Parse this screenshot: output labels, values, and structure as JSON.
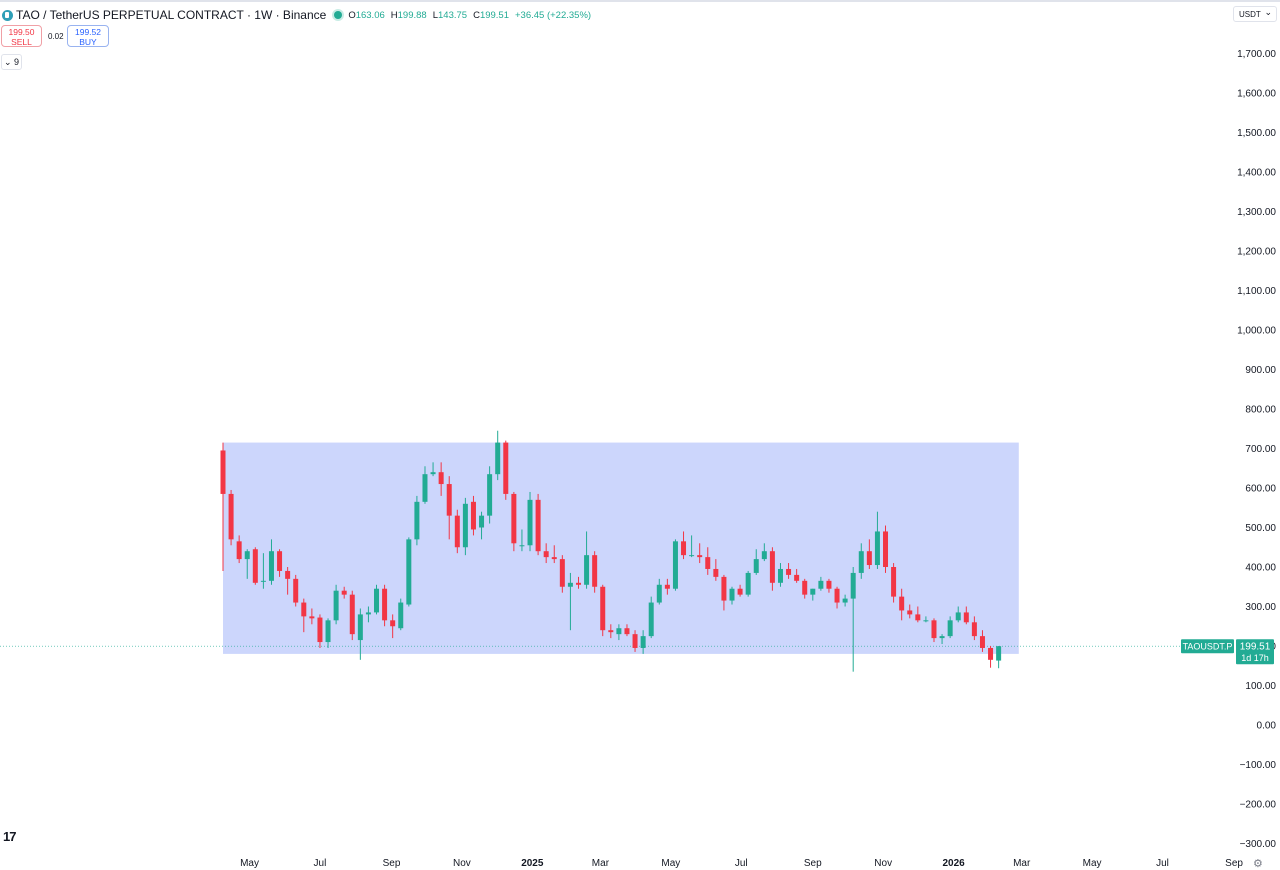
{
  "header": {
    "symbol_title": "TAO / TetherUS PERPETUAL CONTRACT · 1W · Binance",
    "o_label": "O",
    "o_value": "163.06",
    "h_label": "H",
    "h_value": "199.88",
    "l_label": "L",
    "l_value": "143.75",
    "c_label": "C",
    "c_value": "199.51",
    "change": "+36.45 (+22.35%)"
  },
  "trade": {
    "sell_price": "199.50",
    "sell_label": "SELL",
    "spread": "0.02",
    "buy_price": "199.52",
    "buy_label": "BUY"
  },
  "indicators_toggle": "⌄ 9",
  "currency_selector": "USDT",
  "footer": {
    "logo": "17",
    "settings_icon": "gear-icon"
  },
  "colors": {
    "up": "#22ab94",
    "down": "#f23645",
    "range_box": "#c9d4fc",
    "axis_text": "#131722"
  },
  "chart_data": {
    "type": "candlestick",
    "title": "",
    "y_axis_side": "right",
    "y_ticks": [
      "1,700.00",
      "1,600.00",
      "1,500.00",
      "1,400.00",
      "1,300.00",
      "1,200.00",
      "1,100.00",
      "1,000.00",
      "900.00",
      "800.00",
      "700.00",
      "600.00",
      "500.00",
      "400.00",
      "300.00",
      "200.00",
      "100.00",
      "0.00",
      "−100.00",
      "−200.00",
      "−300.00"
    ],
    "ylim": [
      -300,
      1700
    ],
    "x_ticks": [
      {
        "label": "May",
        "date": "2024-05-01",
        "bold": false
      },
      {
        "label": "Jul",
        "date": "2024-07-01",
        "bold": false
      },
      {
        "label": "Sep",
        "date": "2024-09-01",
        "bold": false
      },
      {
        "label": "Nov",
        "date": "2024-11-01",
        "bold": false
      },
      {
        "label": "2025",
        "date": "2025-01-01",
        "bold": true
      },
      {
        "label": "Mar",
        "date": "2025-03-01",
        "bold": false
      },
      {
        "label": "May",
        "date": "2025-05-01",
        "bold": false
      },
      {
        "label": "Jul",
        "date": "2025-07-01",
        "bold": false
      },
      {
        "label": "Sep",
        "date": "2025-09-01",
        "bold": false
      },
      {
        "label": "Nov",
        "date": "2025-11-01",
        "bold": false
      },
      {
        "label": "2026",
        "date": "2026-01-01",
        "bold": true
      },
      {
        "label": "Mar",
        "date": "2026-03-01",
        "bold": false
      },
      {
        "label": "May",
        "date": "2026-05-01",
        "bold": false
      },
      {
        "label": "Jul",
        "date": "2026-07-01",
        "bold": false
      },
      {
        "label": "Sep",
        "date": "2026-09-01",
        "bold": false
      }
    ],
    "range_box": {
      "start": "2024-04-08",
      "end": "2026-02-23",
      "top": 715,
      "bottom": 180
    },
    "last_price": {
      "ticker": "TAOUSDT.P",
      "value": "199.51",
      "countdown": "1d 17h"
    },
    "candles": [
      {
        "date": "2024-04-08",
        "o": 695,
        "h": 715,
        "l": 390,
        "c": 585
      },
      {
        "date": "2024-04-15",
        "o": 585,
        "h": 595,
        "l": 455,
        "c": 470
      },
      {
        "date": "2024-04-22",
        "o": 465,
        "h": 480,
        "l": 410,
        "c": 420
      },
      {
        "date": "2024-04-29",
        "o": 420,
        "h": 445,
        "l": 370,
        "c": 440
      },
      {
        "date": "2024-05-06",
        "o": 445,
        "h": 450,
        "l": 355,
        "c": 360
      },
      {
        "date": "2024-05-13",
        "o": 365,
        "h": 435,
        "l": 345,
        "c": 365
      },
      {
        "date": "2024-05-20",
        "o": 365,
        "h": 470,
        "l": 355,
        "c": 440
      },
      {
        "date": "2024-05-27",
        "o": 440,
        "h": 445,
        "l": 375,
        "c": 390
      },
      {
        "date": "2024-06-03",
        "o": 390,
        "h": 400,
        "l": 330,
        "c": 370
      },
      {
        "date": "2024-06-10",
        "o": 370,
        "h": 380,
        "l": 300,
        "c": 310
      },
      {
        "date": "2024-06-17",
        "o": 310,
        "h": 320,
        "l": 235,
        "c": 275
      },
      {
        "date": "2024-06-24",
        "o": 275,
        "h": 295,
        "l": 255,
        "c": 270
      },
      {
        "date": "2024-07-01",
        "o": 272,
        "h": 280,
        "l": 195,
        "c": 210
      },
      {
        "date": "2024-07-08",
        "o": 210,
        "h": 270,
        "l": 195,
        "c": 265
      },
      {
        "date": "2024-07-15",
        "o": 265,
        "h": 355,
        "l": 255,
        "c": 340
      },
      {
        "date": "2024-07-22",
        "o": 340,
        "h": 350,
        "l": 320,
        "c": 330
      },
      {
        "date": "2024-07-29",
        "o": 330,
        "h": 340,
        "l": 215,
        "c": 230
      },
      {
        "date": "2024-08-05",
        "o": 215,
        "h": 295,
        "l": 165,
        "c": 280
      },
      {
        "date": "2024-08-12",
        "o": 280,
        "h": 300,
        "l": 260,
        "c": 285
      },
      {
        "date": "2024-08-19",
        "o": 285,
        "h": 355,
        "l": 280,
        "c": 345
      },
      {
        "date": "2024-08-26",
        "o": 345,
        "h": 355,
        "l": 250,
        "c": 265
      },
      {
        "date": "2024-09-02",
        "o": 265,
        "h": 280,
        "l": 220,
        "c": 250
      },
      {
        "date": "2024-09-09",
        "o": 245,
        "h": 320,
        "l": 240,
        "c": 310
      },
      {
        "date": "2024-09-16",
        "o": 305,
        "h": 475,
        "l": 300,
        "c": 470
      },
      {
        "date": "2024-09-23",
        "o": 470,
        "h": 580,
        "l": 455,
        "c": 565
      },
      {
        "date": "2024-09-30",
        "o": 565,
        "h": 655,
        "l": 560,
        "c": 635
      },
      {
        "date": "2024-10-07",
        "o": 635,
        "h": 665,
        "l": 630,
        "c": 640
      },
      {
        "date": "2024-10-14",
        "o": 640,
        "h": 665,
        "l": 580,
        "c": 610
      },
      {
        "date": "2024-10-21",
        "o": 610,
        "h": 630,
        "l": 470,
        "c": 530
      },
      {
        "date": "2024-10-28",
        "o": 530,
        "h": 545,
        "l": 435,
        "c": 450
      },
      {
        "date": "2024-11-04",
        "o": 450,
        "h": 575,
        "l": 430,
        "c": 560
      },
      {
        "date": "2024-11-11",
        "o": 565,
        "h": 580,
        "l": 480,
        "c": 495
      },
      {
        "date": "2024-11-18",
        "o": 500,
        "h": 540,
        "l": 470,
        "c": 530
      },
      {
        "date": "2024-11-25",
        "o": 530,
        "h": 655,
        "l": 510,
        "c": 635
      },
      {
        "date": "2024-12-02",
        "o": 635,
        "h": 745,
        "l": 620,
        "c": 715
      },
      {
        "date": "2024-12-09",
        "o": 715,
        "h": 720,
        "l": 570,
        "c": 585
      },
      {
        "date": "2024-12-16",
        "o": 585,
        "h": 590,
        "l": 440,
        "c": 460
      },
      {
        "date": "2024-12-23",
        "o": 455,
        "h": 495,
        "l": 440,
        "c": 455
      },
      {
        "date": "2024-12-30",
        "o": 455,
        "h": 590,
        "l": 440,
        "c": 570
      },
      {
        "date": "2025-01-06",
        "o": 570,
        "h": 585,
        "l": 430,
        "c": 440
      },
      {
        "date": "2025-01-13",
        "o": 440,
        "h": 460,
        "l": 410,
        "c": 425
      },
      {
        "date": "2025-01-20",
        "o": 425,
        "h": 455,
        "l": 410,
        "c": 420
      },
      {
        "date": "2025-01-27",
        "o": 420,
        "h": 430,
        "l": 335,
        "c": 350
      },
      {
        "date": "2025-02-03",
        "o": 350,
        "h": 385,
        "l": 240,
        "c": 360
      },
      {
        "date": "2025-02-10",
        "o": 360,
        "h": 375,
        "l": 345,
        "c": 355
      },
      {
        "date": "2025-02-17",
        "o": 355,
        "h": 490,
        "l": 345,
        "c": 430
      },
      {
        "date": "2025-02-24",
        "o": 430,
        "h": 440,
        "l": 335,
        "c": 350
      },
      {
        "date": "2025-03-03",
        "o": 350,
        "h": 355,
        "l": 225,
        "c": 240
      },
      {
        "date": "2025-03-10",
        "o": 240,
        "h": 255,
        "l": 220,
        "c": 235
      },
      {
        "date": "2025-03-17",
        "o": 230,
        "h": 255,
        "l": 215,
        "c": 245
      },
      {
        "date": "2025-03-24",
        "o": 245,
        "h": 255,
        "l": 225,
        "c": 230
      },
      {
        "date": "2025-03-31",
        "o": 230,
        "h": 240,
        "l": 185,
        "c": 195
      },
      {
        "date": "2025-04-07",
        "o": 195,
        "h": 240,
        "l": 180,
        "c": 225
      },
      {
        "date": "2025-04-14",
        "o": 225,
        "h": 325,
        "l": 220,
        "c": 310
      },
      {
        "date": "2025-04-21",
        "o": 310,
        "h": 370,
        "l": 305,
        "c": 355
      },
      {
        "date": "2025-04-28",
        "o": 355,
        "h": 370,
        "l": 330,
        "c": 345
      },
      {
        "date": "2025-05-05",
        "o": 345,
        "h": 470,
        "l": 340,
        "c": 465
      },
      {
        "date": "2025-05-12",
        "o": 465,
        "h": 490,
        "l": 420,
        "c": 430
      },
      {
        "date": "2025-05-19",
        "o": 430,
        "h": 480,
        "l": 425,
        "c": 430
      },
      {
        "date": "2025-05-26",
        "o": 430,
        "h": 460,
        "l": 410,
        "c": 425
      },
      {
        "date": "2025-06-02",
        "o": 425,
        "h": 450,
        "l": 380,
        "c": 395
      },
      {
        "date": "2025-06-09",
        "o": 395,
        "h": 420,
        "l": 365,
        "c": 375
      },
      {
        "date": "2025-06-16",
        "o": 375,
        "h": 380,
        "l": 290,
        "c": 315
      },
      {
        "date": "2025-06-23",
        "o": 315,
        "h": 350,
        "l": 305,
        "c": 345
      },
      {
        "date": "2025-06-30",
        "o": 345,
        "h": 355,
        "l": 325,
        "c": 330
      },
      {
        "date": "2025-07-07",
        "o": 330,
        "h": 390,
        "l": 325,
        "c": 385
      },
      {
        "date": "2025-07-14",
        "o": 385,
        "h": 445,
        "l": 380,
        "c": 420
      },
      {
        "date": "2025-07-21",
        "o": 420,
        "h": 460,
        "l": 415,
        "c": 440
      },
      {
        "date": "2025-07-28",
        "o": 440,
        "h": 450,
        "l": 340,
        "c": 360
      },
      {
        "date": "2025-08-04",
        "o": 360,
        "h": 410,
        "l": 350,
        "c": 395
      },
      {
        "date": "2025-08-11",
        "o": 395,
        "h": 410,
        "l": 370,
        "c": 380
      },
      {
        "date": "2025-08-18",
        "o": 380,
        "h": 395,
        "l": 360,
        "c": 365
      },
      {
        "date": "2025-08-25",
        "o": 365,
        "h": 370,
        "l": 320,
        "c": 330
      },
      {
        "date": "2025-09-01",
        "o": 330,
        "h": 345,
        "l": 315,
        "c": 345
      },
      {
        "date": "2025-09-08",
        "o": 345,
        "h": 375,
        "l": 340,
        "c": 365
      },
      {
        "date": "2025-09-15",
        "o": 365,
        "h": 370,
        "l": 335,
        "c": 345
      },
      {
        "date": "2025-09-22",
        "o": 345,
        "h": 350,
        "l": 295,
        "c": 310
      },
      {
        "date": "2025-09-29",
        "o": 310,
        "h": 330,
        "l": 300,
        "c": 320
      },
      {
        "date": "2025-10-06",
        "o": 320,
        "h": 400,
        "l": 135,
        "c": 385
      },
      {
        "date": "2025-10-13",
        "o": 385,
        "h": 460,
        "l": 370,
        "c": 440
      },
      {
        "date": "2025-10-20",
        "o": 440,
        "h": 470,
        "l": 395,
        "c": 405
      },
      {
        "date": "2025-10-27",
        "o": 405,
        "h": 540,
        "l": 395,
        "c": 490
      },
      {
        "date": "2025-11-03",
        "o": 490,
        "h": 505,
        "l": 385,
        "c": 400
      },
      {
        "date": "2025-11-10",
        "o": 400,
        "h": 410,
        "l": 310,
        "c": 325
      },
      {
        "date": "2025-11-17",
        "o": 325,
        "h": 345,
        "l": 265,
        "c": 290
      },
      {
        "date": "2025-11-24",
        "o": 290,
        "h": 305,
        "l": 270,
        "c": 280
      },
      {
        "date": "2025-12-01",
        "o": 280,
        "h": 300,
        "l": 260,
        "c": 265
      },
      {
        "date": "2025-12-08",
        "o": 265,
        "h": 275,
        "l": 260,
        "c": 265
      },
      {
        "date": "2025-12-15",
        "o": 265,
        "h": 270,
        "l": 210,
        "c": 220
      },
      {
        "date": "2025-12-22",
        "o": 220,
        "h": 230,
        "l": 205,
        "c": 225
      },
      {
        "date": "2025-12-29",
        "o": 225,
        "h": 275,
        "l": 220,
        "c": 265
      },
      {
        "date": "2026-01-05",
        "o": 265,
        "h": 300,
        "l": 260,
        "c": 285
      },
      {
        "date": "2026-01-12",
        "o": 285,
        "h": 300,
        "l": 255,
        "c": 260
      },
      {
        "date": "2026-01-19",
        "o": 260,
        "h": 275,
        "l": 215,
        "c": 225
      },
      {
        "date": "2026-01-26",
        "o": 225,
        "h": 240,
        "l": 185,
        "c": 195
      },
      {
        "date": "2026-02-02",
        "o": 195,
        "h": 200,
        "l": 145,
        "c": 165
      },
      {
        "date": "2026-02-09",
        "o": 163.06,
        "h": 199.88,
        "l": 143.75,
        "c": 199.51
      }
    ]
  }
}
